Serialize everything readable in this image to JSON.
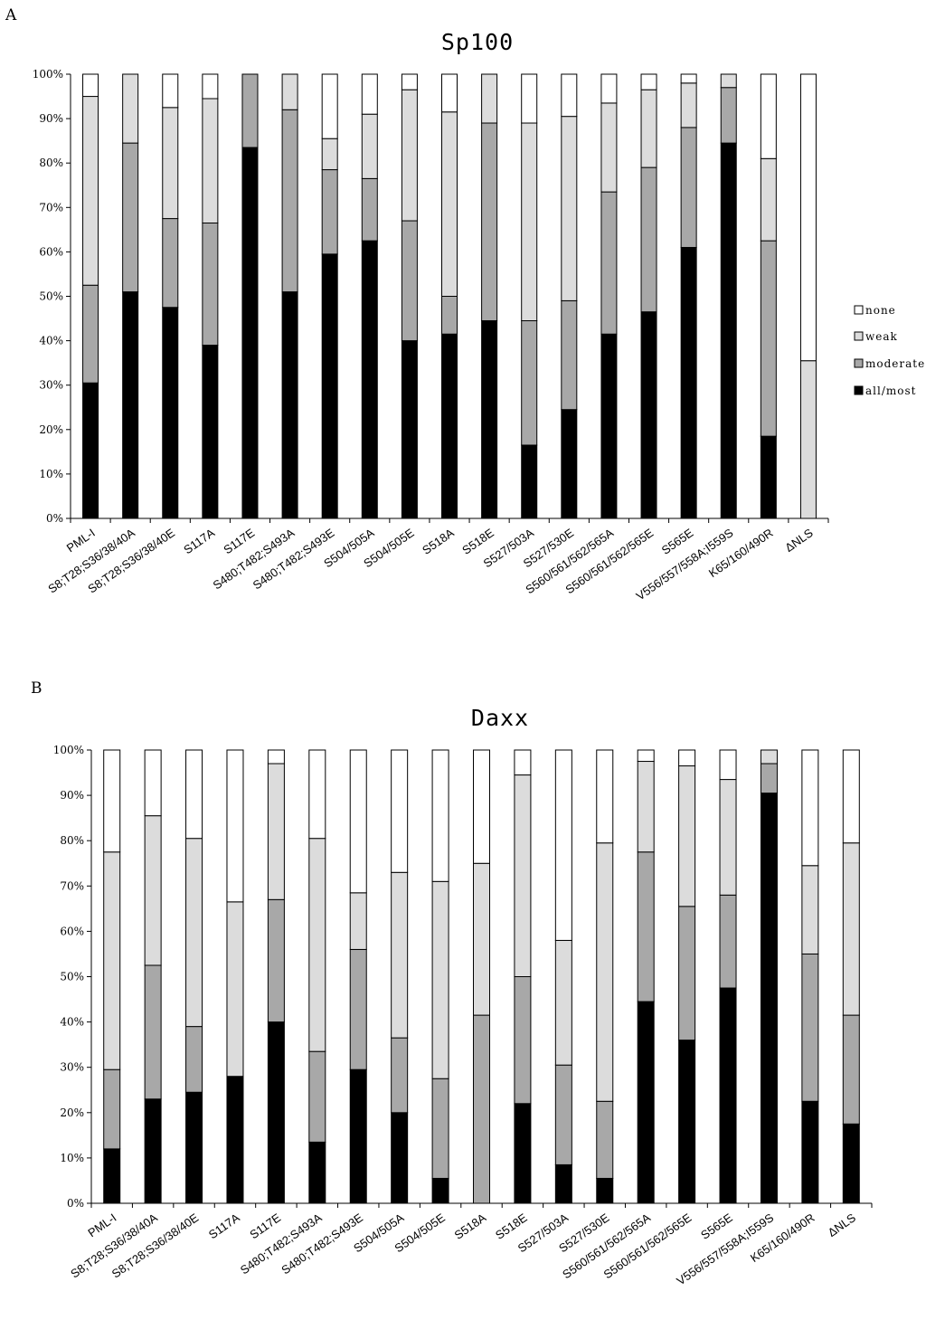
{
  "figure": {
    "panel_a": "A",
    "panel_b": "B"
  },
  "colors": {
    "none": "#ffffff",
    "weak": "#dcdcdc",
    "moderate": "#a8a8a8",
    "all_most": "#000000",
    "stroke": "#000000"
  },
  "chart_data": [
    {
      "type": "bar",
      "stacked": true,
      "title": "Sp100",
      "ylim": [
        0,
        100
      ],
      "yticks": [
        "0%",
        "10%",
        "20%",
        "30%",
        "40%",
        "50%",
        "60%",
        "70%",
        "80%",
        "90%",
        "100%"
      ],
      "legend": [
        "none",
        "weak",
        "moderate",
        "all/most"
      ],
      "legend_position": "right",
      "categories": [
        "PML-I",
        "S8;T28;S36/38/40A",
        "S8;T28;S36/38/40E",
        "S117A",
        "S117E",
        "S480;T482;S493A",
        "S480;T482;S493E",
        "S504/505A",
        "S504/505E",
        "S518A",
        "S518E",
        "S527/503A",
        "S527/530E",
        "S560/561/562/565A",
        "S560/561/562/565E",
        "S565E",
        "V556/557/558A;I559S",
        "K65/160/490R",
        "ΔNLS"
      ],
      "series": [
        {
          "name": "all/most",
          "values": [
            30.5,
            51,
            47.5,
            39,
            83.5,
            51,
            59.5,
            62.5,
            40,
            41.5,
            44.5,
            16.5,
            24.5,
            41.5,
            46.5,
            61,
            84.5,
            18.5,
            0
          ]
        },
        {
          "name": "moderate",
          "values": [
            22,
            33.5,
            20,
            27.5,
            16.5,
            41,
            19,
            14,
            27,
            8.5,
            44.5,
            28,
            24.5,
            32,
            32.5,
            27,
            12.5,
            44,
            0
          ]
        },
        {
          "name": "weak",
          "values": [
            42.5,
            15.5,
            25,
            28,
            0,
            8,
            7,
            14.5,
            29.5,
            41.5,
            11,
            44.5,
            41.5,
            20,
            17.5,
            10,
            3,
            18.5,
            35.5
          ]
        },
        {
          "name": "none",
          "values": [
            5,
            0,
            7.5,
            5.5,
            0,
            0,
            14.5,
            9,
            3.5,
            8.5,
            0,
            11,
            9.5,
            6.5,
            3.5,
            2,
            0,
            19,
            64.5
          ]
        }
      ]
    },
    {
      "type": "bar",
      "stacked": true,
      "title": "Daxx",
      "ylim": [
        0,
        100
      ],
      "yticks": [
        "0%",
        "10%",
        "20%",
        "30%",
        "40%",
        "50%",
        "60%",
        "70%",
        "80%",
        "90%",
        "100%"
      ],
      "categories": [
        "PML-I",
        "S8;T28;S36/38/40A",
        "S8;T28;S36/38/40E",
        "S117A",
        "S117E",
        "S480;T482;S493A",
        "S480;T482;S493E",
        "S504/505A",
        "S504/505E",
        "S518A",
        "S518E",
        "S527/503A",
        "S527/530E",
        "S560/561/562/565A",
        "S560/561/562/565E",
        "S565E",
        "V556/557/558A;I559S",
        "K65/160/490R",
        "ΔNLS"
      ],
      "series": [
        {
          "name": "all/most",
          "values": [
            12,
            23,
            24.5,
            28,
            40,
            13.5,
            29.5,
            20,
            5.5,
            0,
            22,
            8.5,
            5.5,
            44.5,
            36,
            47.5,
            90.5,
            22.5,
            17.5
          ]
        },
        {
          "name": "moderate",
          "values": [
            17.5,
            29.5,
            14.5,
            0,
            27,
            20,
            26.5,
            16.5,
            22,
            41.5,
            28,
            22,
            17,
            33,
            29.5,
            20.5,
            6.5,
            32.5,
            24
          ]
        },
        {
          "name": "weak",
          "values": [
            48,
            33,
            41.5,
            38.5,
            30,
            47,
            12.5,
            36.5,
            43.5,
            33.5,
            44.5,
            27.5,
            57,
            20,
            31,
            25.5,
            3,
            19.5,
            38
          ]
        },
        {
          "name": "none",
          "values": [
            22.5,
            14.5,
            19.5,
            33.5,
            3,
            19.5,
            31.5,
            27,
            29,
            25,
            5.5,
            42,
            20.5,
            2.5,
            3.5,
            6.5,
            0,
            25.5,
            20.5
          ]
        }
      ]
    }
  ]
}
